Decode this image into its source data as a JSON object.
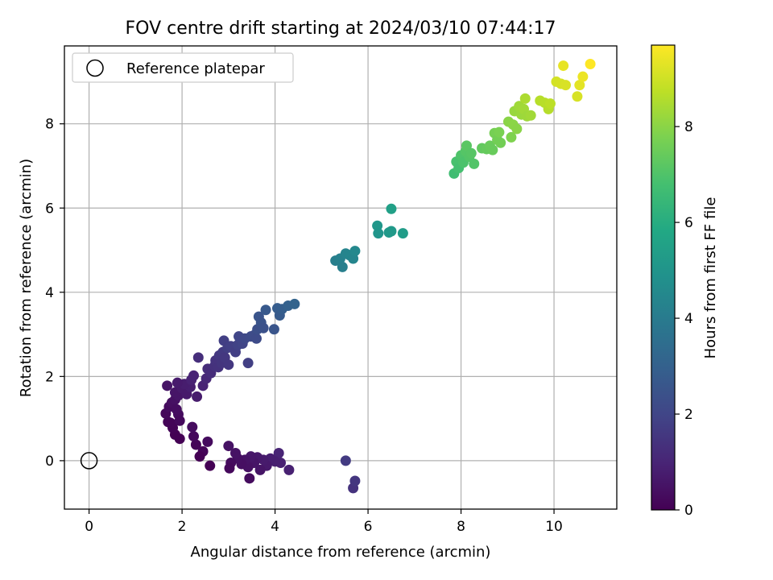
{
  "chart_data": {
    "type": "scatter",
    "title": "FOV centre drift starting at 2024/03/10 07:44:17",
    "xlabel": "Angular distance from reference (arcmin)",
    "ylabel": "Rotation from reference (arcmin)",
    "xlim": [
      -0.53,
      11.35
    ],
    "ylim": [
      -1.15,
      9.85
    ],
    "xticks": [
      0,
      2,
      4,
      6,
      8,
      10
    ],
    "yticks": [
      0,
      2,
      4,
      6,
      8
    ],
    "grid": true,
    "legend": {
      "placement": "top-left",
      "label": "Reference platepar"
    },
    "reference_point": {
      "x": 0,
      "y": 0,
      "marker": "open-circle"
    },
    "colorbar": {
      "label": "Hours from first FF file",
      "colormap": "viridis",
      "range": [
        0,
        9.7
      ],
      "ticks": [
        0,
        2,
        4,
        6,
        8
      ]
    },
    "series": [
      {
        "points": [
          [
            5.68,
            -0.65
          ],
          [
            5.72,
            -0.48
          ],
          [
            5.52,
            0.0
          ],
          [
            4.3,
            -0.22
          ],
          [
            4.12,
            -0.05
          ],
          [
            4.08,
            0.18
          ],
          [
            4.0,
            -0.02
          ],
          [
            3.9,
            0.05
          ],
          [
            3.82,
            -0.12
          ],
          [
            3.75,
            0.02
          ],
          [
            3.68,
            -0.22
          ],
          [
            3.62,
            0.08
          ],
          [
            3.55,
            -0.05
          ],
          [
            3.48,
            0.1
          ],
          [
            3.42,
            -0.15
          ],
          [
            3.45,
            -0.42
          ],
          [
            3.35,
            0.02
          ],
          [
            3.28,
            -0.08
          ],
          [
            3.2,
            0.05
          ],
          [
            3.15,
            0.18
          ],
          [
            3.05,
            -0.05
          ],
          [
            3.0,
            0.35
          ],
          [
            3.02,
            -0.18
          ],
          [
            2.6,
            -0.12
          ],
          [
            2.55,
            0.45
          ],
          [
            2.45,
            0.22
          ],
          [
            2.38,
            0.1
          ],
          [
            2.3,
            0.38
          ],
          [
            2.25,
            0.58
          ],
          [
            2.22,
            0.8
          ],
          [
            1.95,
            0.52
          ],
          [
            1.85,
            0.62
          ],
          [
            1.8,
            0.78
          ],
          [
            1.75,
            0.9
          ],
          [
            1.7,
            0.92
          ],
          [
            1.65,
            1.12
          ],
          [
            1.72,
            1.28
          ],
          [
            1.78,
            1.38
          ],
          [
            1.85,
            1.45
          ],
          [
            1.92,
            1.1
          ],
          [
            1.95,
            0.95
          ],
          [
            1.88,
            1.22
          ],
          [
            1.92,
            1.55
          ],
          [
            1.68,
            1.78
          ],
          [
            1.85,
            1.62
          ],
          [
            2.0,
            1.72
          ],
          [
            2.1,
            1.58
          ],
          [
            2.18,
            1.75
          ],
          [
            2.05,
            1.82
          ],
          [
            1.9,
            1.85
          ],
          [
            2.2,
            1.92
          ],
          [
            2.25,
            2.02
          ],
          [
            2.32,
            1.52
          ],
          [
            2.45,
            1.78
          ],
          [
            2.52,
            1.95
          ],
          [
            2.55,
            2.18
          ],
          [
            2.62,
            2.08
          ],
          [
            2.7,
            2.25
          ],
          [
            2.72,
            2.38
          ],
          [
            2.78,
            2.22
          ],
          [
            2.8,
            2.5
          ],
          [
            2.85,
            2.32
          ],
          [
            2.88,
            2.58
          ],
          [
            2.92,
            2.45
          ],
          [
            3.0,
            2.28
          ],
          [
            2.9,
            2.85
          ],
          [
            2.98,
            2.68
          ],
          [
            3.05,
            2.72
          ],
          [
            3.15,
            2.58
          ],
          [
            3.2,
            2.75
          ],
          [
            3.22,
            2.95
          ],
          [
            3.3,
            2.78
          ],
          [
            3.35,
            2.9
          ],
          [
            3.42,
            2.32
          ],
          [
            3.48,
            2.95
          ],
          [
            3.55,
            2.98
          ],
          [
            3.6,
            2.9
          ],
          [
            3.62,
            3.12
          ],
          [
            3.65,
            3.42
          ],
          [
            3.7,
            3.28
          ],
          [
            3.75,
            3.15
          ],
          [
            3.8,
            3.58
          ],
          [
            3.98,
            3.12
          ],
          [
            4.05,
            3.62
          ],
          [
            4.1,
            3.45
          ],
          [
            4.15,
            3.6
          ],
          [
            4.28,
            3.68
          ],
          [
            4.42,
            3.72
          ],
          [
            2.35,
            2.45
          ],
          [
            5.3,
            4.75
          ],
          [
            5.4,
            4.8
          ],
          [
            5.45,
            4.6
          ],
          [
            5.52,
            4.92
          ],
          [
            5.6,
            4.88
          ],
          [
            5.68,
            4.8
          ],
          [
            5.72,
            4.98
          ],
          [
            6.2,
            5.58
          ],
          [
            6.22,
            5.4
          ],
          [
            6.45,
            5.42
          ],
          [
            6.5,
            5.45
          ],
          [
            6.5,
            5.98
          ],
          [
            6.75,
            5.4
          ],
          [
            7.85,
            6.82
          ],
          [
            7.9,
            7.1
          ],
          [
            7.95,
            6.95
          ],
          [
            8.0,
            7.25
          ],
          [
            8.05,
            7.08
          ],
          [
            8.1,
            7.35
          ],
          [
            8.12,
            7.48
          ],
          [
            8.18,
            7.22
          ],
          [
            8.22,
            7.3
          ],
          [
            8.28,
            7.05
          ],
          [
            8.45,
            7.42
          ],
          [
            8.55,
            7.4
          ],
          [
            8.62,
            7.48
          ],
          [
            8.68,
            7.38
          ],
          [
            8.72,
            7.78
          ],
          [
            8.78,
            7.62
          ],
          [
            8.82,
            7.8
          ],
          [
            8.85,
            7.55
          ],
          [
            9.02,
            8.05
          ],
          [
            9.08,
            7.68
          ],
          [
            9.12,
            7.98
          ],
          [
            9.15,
            8.3
          ],
          [
            9.2,
            7.88
          ],
          [
            9.25,
            8.42
          ],
          [
            9.3,
            8.22
          ],
          [
            9.35,
            8.35
          ],
          [
            9.38,
            8.6
          ],
          [
            9.42,
            8.18
          ],
          [
            9.5,
            8.2
          ],
          [
            9.7,
            8.55
          ],
          [
            9.8,
            8.5
          ],
          [
            9.88,
            8.35
          ],
          [
            9.92,
            8.48
          ],
          [
            10.05,
            9.0
          ],
          [
            10.15,
            8.95
          ],
          [
            10.2,
            9.38
          ],
          [
            10.25,
            8.92
          ],
          [
            10.5,
            8.65
          ],
          [
            10.55,
            8.92
          ],
          [
            10.62,
            9.12
          ],
          [
            10.78,
            9.42
          ]
        ]
      }
    ]
  }
}
